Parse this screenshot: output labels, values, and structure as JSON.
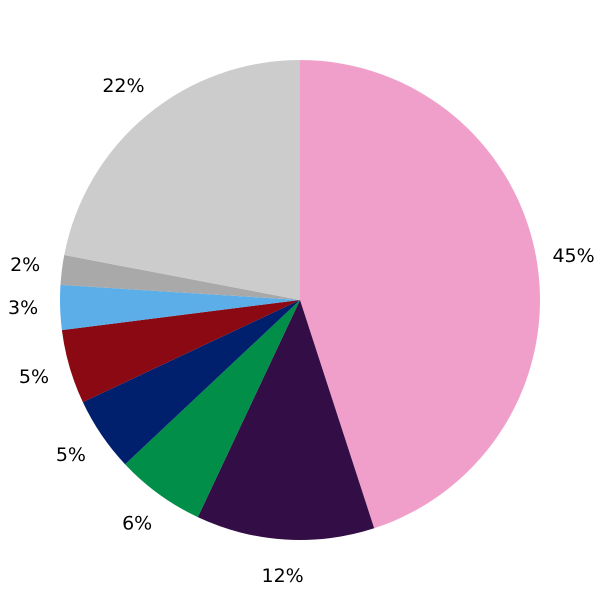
{
  "chart_data": {
    "type": "pie",
    "values": [
      45,
      12,
      6,
      5,
      5,
      3,
      2,
      22
    ],
    "value_labels": [
      "45%",
      "12%",
      "6%",
      "5%",
      "5%",
      "3%",
      "2%",
      "22%"
    ],
    "colors": [
      "#f09fca",
      "#330d45",
      "#008e48",
      "#00206e",
      "#8a0912",
      "#5caee8",
      "#a9a9a9",
      "#cccccc"
    ]
  }
}
